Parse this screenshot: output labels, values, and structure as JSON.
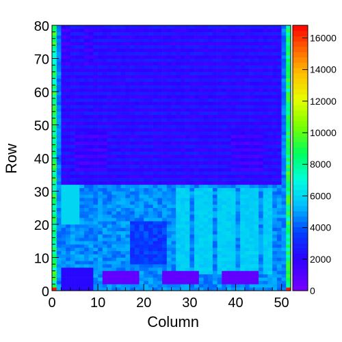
{
  "chart_data": {
    "type": "heatmap",
    "xlabel": "Column",
    "ylabel": "Row",
    "xlim": [
      0,
      52
    ],
    "ylim": [
      0,
      80
    ],
    "zlim": [
      0,
      16800
    ],
    "colormap": "rainbow",
    "xticks": [
      "0",
      "10",
      "20",
      "30",
      "40",
      "50"
    ],
    "yticks": [
      "0",
      "10",
      "20",
      "30",
      "40",
      "50",
      "60",
      "70",
      "80"
    ],
    "zticks": [
      "0",
      "2000",
      "4000",
      "6000",
      "8000",
      "10000",
      "12000",
      "14000",
      "16000"
    ],
    "regions": {
      "upper_half_rows_32_to_80": 2200,
      "lower_half_rows_0_to_31": 4700,
      "edge_columns_0_and_51": 8500,
      "bright_bands_cols_2_to_5_rows_20_to_31": 6000,
      "bright_bands_cols_27_to_47_rows_5_to_30": 5800,
      "dark_bars_rows_2_to_5": 600,
      "dark_bar_spans_columns": [
        [
          11,
          19
        ],
        [
          24,
          32
        ],
        [
          37,
          45
        ]
      ]
    }
  }
}
